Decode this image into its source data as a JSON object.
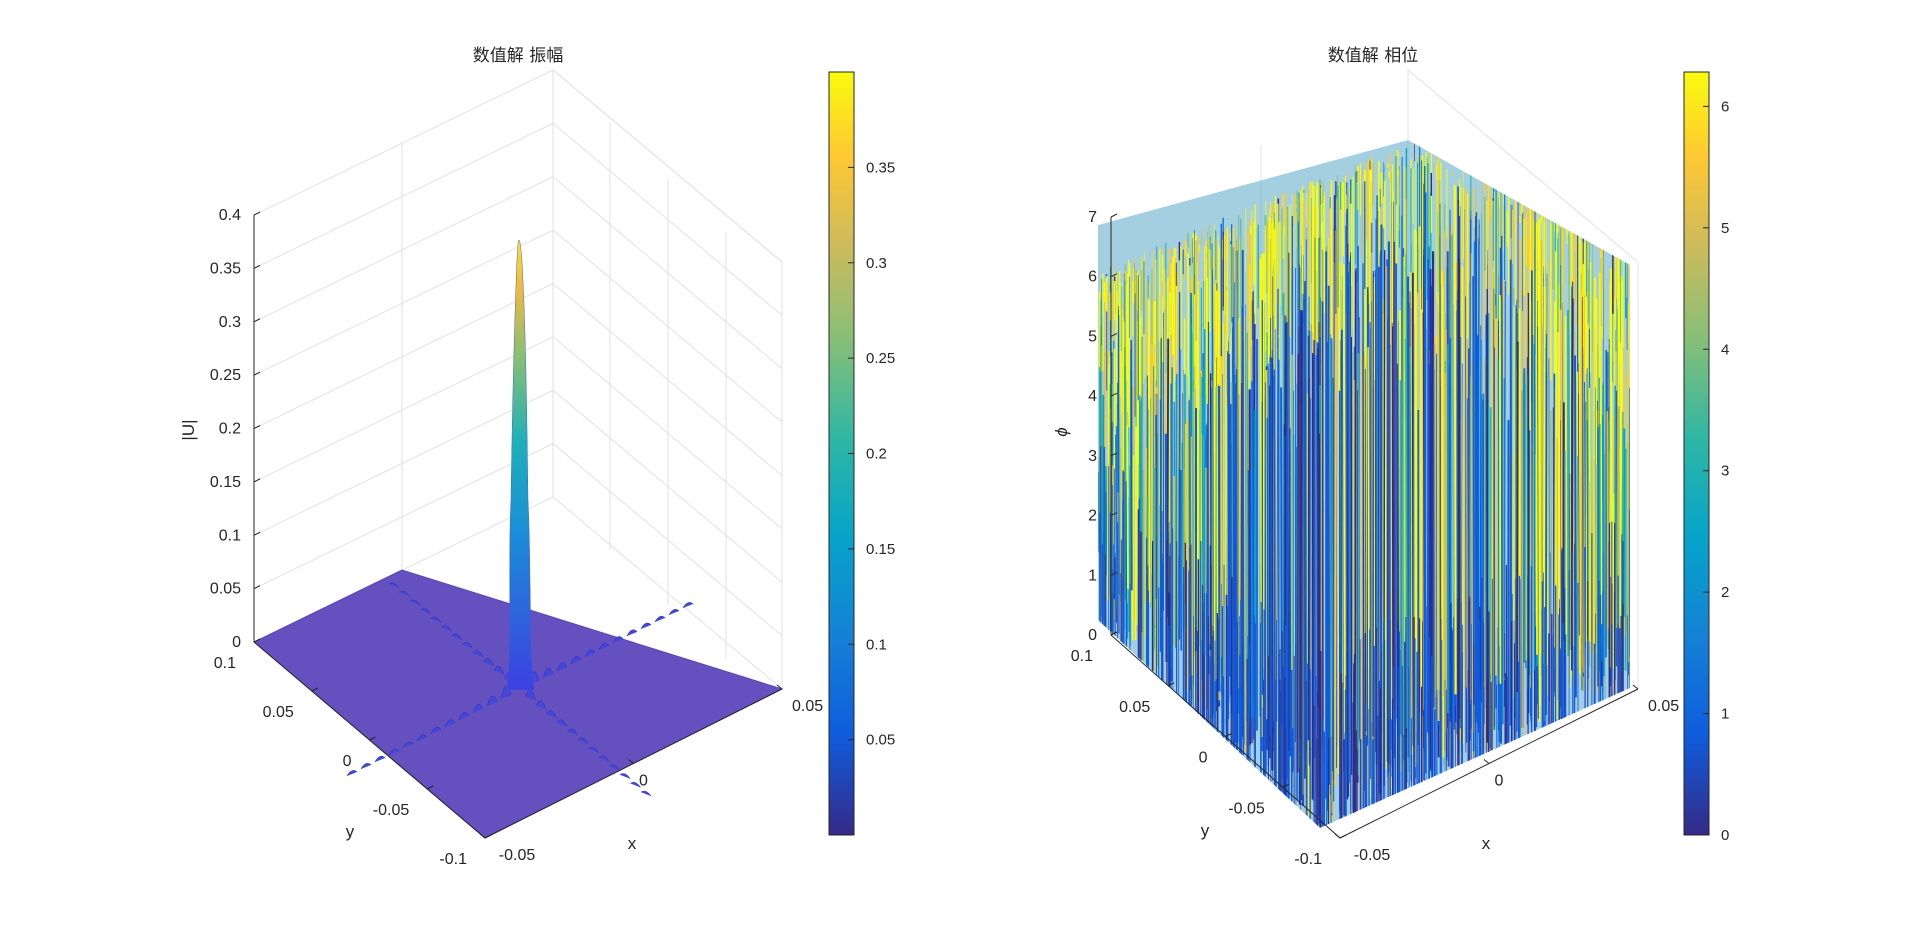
{
  "chart_data": [
    {
      "type": "surface3d",
      "title": "数值解 振幅",
      "xlabel": "x",
      "ylabel": "y",
      "zlabel": "|U|",
      "x_ticks": [
        "-0.05",
        "0",
        "0.05"
      ],
      "y_ticks": [
        "-0.1",
        "-0.05",
        "0",
        "0.05",
        "0.1"
      ],
      "z_ticks": [
        "0",
        "0.05",
        "0.1",
        "0.15",
        "0.2",
        "0.25",
        "0.3",
        "0.35",
        "0.4"
      ],
      "xlim": [
        -0.05,
        0.05
      ],
      "ylim": [
        -0.1,
        0.1
      ],
      "zlim": [
        0,
        0.4
      ],
      "peak": {
        "x": 0,
        "y": 0,
        "z": 0.37
      },
      "colormap": "parula",
      "colorbar_ticks": [
        "0.05",
        "0.1",
        "0.15",
        "0.2",
        "0.25",
        "0.3",
        "0.35"
      ],
      "colorbar_range": [
        0,
        0.4
      ],
      "grid": true
    },
    {
      "type": "surface3d",
      "title": "数值解 相位",
      "xlabel": "x",
      "ylabel": "y",
      "zlabel": "ϕ",
      "x_ticks": [
        "-0.05",
        "0",
        "0.05"
      ],
      "y_ticks": [
        "-0.1",
        "-0.05",
        "0",
        "0.05",
        "0.1"
      ],
      "z_ticks": [
        "0",
        "1",
        "2",
        "3",
        "4",
        "5",
        "6",
        "7"
      ],
      "xlim": [
        -0.05,
        0.05
      ],
      "ylim": [
        -0.1,
        0.1
      ],
      "zlim": [
        0,
        7
      ],
      "value_range": [
        0,
        6.2832
      ],
      "colormap": "parula",
      "colorbar_ticks": [
        "0",
        "1",
        "2",
        "3",
        "4",
        "5",
        "6"
      ],
      "colorbar_range": [
        0,
        6.2832
      ],
      "grid": true
    }
  ],
  "colors": {
    "parula": [
      "#352a87",
      "#0f5cdd",
      "#1481d6",
      "#06a4ca",
      "#2eb7a4",
      "#87bf77",
      "#d1bb59",
      "#fec832",
      "#f9fb0e"
    ],
    "axis": "#262626",
    "grid": "#e2e2e2"
  }
}
